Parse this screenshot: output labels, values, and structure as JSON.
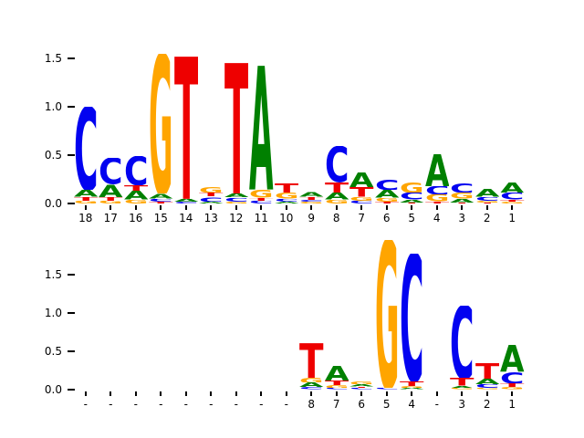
{
  "figure": {
    "background": "#ffffff"
  },
  "letter_colors": {
    "A": "#008000",
    "C": "#0202f0",
    "G": "#ffa500",
    "T": "#ee0000"
  },
  "chart_data": [
    {
      "type": "sequence-logo",
      "title": "",
      "xlabel": "",
      "ylabel": "",
      "legend": "none",
      "grid": false,
      "ylim": [
        0,
        1.65
      ],
      "ytick_labels": [
        "0.0",
        "0.5",
        "1.0",
        "1.5"
      ],
      "ytick_values": [
        0,
        0.5,
        1.0,
        1.5
      ],
      "positions": [
        {
          "label": "18",
          "stack": [
            [
              "G",
              0.03
            ],
            [
              "T",
              0.04
            ],
            [
              "A",
              0.07
            ],
            [
              "C",
              0.86
            ]
          ]
        },
        {
          "label": "17",
          "stack": [
            [
              "G",
              0.03
            ],
            [
              "T",
              0.04
            ],
            [
              "A",
              0.13
            ],
            [
              "C",
              0.27
            ]
          ]
        },
        {
          "label": "16",
          "stack": [
            [
              "G",
              0.04
            ],
            [
              "A",
              0.09
            ],
            [
              "T",
              0.06
            ],
            [
              "C",
              0.3
            ]
          ]
        },
        {
          "label": "15",
          "stack": [
            [
              "T",
              0.02
            ],
            [
              "C",
              0.03
            ],
            [
              "A",
              0.05
            ],
            [
              "G",
              1.45
            ]
          ]
        },
        {
          "label": "14",
          "stack": [
            [
              "C",
              0.02
            ],
            [
              "A",
              0.03
            ],
            [
              "T",
              1.47
            ]
          ]
        },
        {
          "label": "13",
          "stack": [
            [
              "A",
              0.02
            ],
            [
              "C",
              0.05
            ],
            [
              "T",
              0.04
            ],
            [
              "G",
              0.06
            ]
          ]
        },
        {
          "label": "12",
          "stack": [
            [
              "G",
              0.02
            ],
            [
              "C",
              0.04
            ],
            [
              "A",
              0.04
            ],
            [
              "T",
              1.35
            ]
          ]
        },
        {
          "label": "11",
          "stack": [
            [
              "C",
              0.03
            ],
            [
              "T",
              0.03
            ],
            [
              "G",
              0.08
            ],
            [
              "A",
              1.28
            ]
          ]
        },
        {
          "label": "10",
          "stack": [
            [
              "A",
              0.02
            ],
            [
              "C",
              0.03
            ],
            [
              "G",
              0.06
            ],
            [
              "T",
              0.1
            ]
          ]
        },
        {
          "label": "9",
          "stack": [
            [
              "G",
              0.02
            ],
            [
              "C",
              0.02
            ],
            [
              "T",
              0.03
            ],
            [
              "A",
              0.05
            ]
          ]
        },
        {
          "label": "8",
          "stack": [
            [
              "G",
              0.04
            ],
            [
              "A",
              0.07
            ],
            [
              "T",
              0.11
            ],
            [
              "C",
              0.37
            ]
          ]
        },
        {
          "label": "7",
          "stack": [
            [
              "C",
              0.03
            ],
            [
              "G",
              0.04
            ],
            [
              "T",
              0.1
            ],
            [
              "A",
              0.15
            ]
          ]
        },
        {
          "label": "6",
          "stack": [
            [
              "T",
              0.02
            ],
            [
              "G",
              0.04
            ],
            [
              "A",
              0.08
            ],
            [
              "C",
              0.11
            ]
          ]
        },
        {
          "label": "5",
          "stack": [
            [
              "T",
              0.01
            ],
            [
              "A",
              0.03
            ],
            [
              "C",
              0.07
            ],
            [
              "G",
              0.11
            ]
          ]
        },
        {
          "label": "4",
          "stack": [
            [
              "T",
              0.02
            ],
            [
              "G",
              0.07
            ],
            [
              "C",
              0.09
            ],
            [
              "A",
              0.33
            ]
          ]
        },
        {
          "label": "3",
          "stack": [
            [
              "T",
              0.01
            ],
            [
              "A",
              0.04
            ],
            [
              "G",
              0.06
            ],
            [
              "C",
              0.1
            ]
          ]
        },
        {
          "label": "2",
          "stack": [
            [
              "T",
              0.01
            ],
            [
              "G",
              0.02
            ],
            [
              "C",
              0.04
            ],
            [
              "A",
              0.08
            ]
          ]
        },
        {
          "label": "1",
          "stack": [
            [
              "G",
              0.02
            ],
            [
              "T",
              0.02
            ],
            [
              "C",
              0.07
            ],
            [
              "A",
              0.11
            ]
          ]
        }
      ]
    },
    {
      "type": "sequence-logo",
      "title": "",
      "xlabel": "",
      "ylabel": "",
      "legend": "none",
      "grid": false,
      "ylim": [
        0,
        2.0
      ],
      "ytick_labels": [
        "0.0",
        "0.5",
        "1.0",
        "1.5"
      ],
      "ytick_values": [
        0,
        0.5,
        1.0,
        1.5
      ],
      "positions": [
        {
          "label": "-",
          "stack": []
        },
        {
          "label": "-",
          "stack": []
        },
        {
          "label": "-",
          "stack": []
        },
        {
          "label": "-",
          "stack": []
        },
        {
          "label": "-",
          "stack": []
        },
        {
          "label": "-",
          "stack": []
        },
        {
          "label": "-",
          "stack": []
        },
        {
          "label": "-",
          "stack": []
        },
        {
          "label": "-",
          "stack": []
        },
        {
          "label": "8",
          "stack": [
            [
              "C",
              0.03
            ],
            [
              "A",
              0.06
            ],
            [
              "G",
              0.07
            ],
            [
              "T",
              0.45
            ]
          ]
        },
        {
          "label": "7",
          "stack": [
            [
              "C",
              0.02
            ],
            [
              "G",
              0.04
            ],
            [
              "T",
              0.06
            ],
            [
              "A",
              0.19
            ]
          ]
        },
        {
          "label": "6",
          "stack": [
            [
              "C",
              0.02
            ],
            [
              "T",
              0.02
            ],
            [
              "A",
              0.03
            ],
            [
              "G",
              0.04
            ]
          ]
        },
        {
          "label": "5",
          "stack": [
            [
              "C",
              0.02
            ],
            [
              "G",
              1.93
            ]
          ]
        },
        {
          "label": "4",
          "stack": [
            [
              "A",
              0.02
            ],
            [
              "G",
              0.03
            ],
            [
              "T",
              0.06
            ],
            [
              "C",
              1.66
            ]
          ]
        },
        {
          "label": "-",
          "stack": []
        },
        {
          "label": "3",
          "stack": [
            [
              "G",
              0.02
            ],
            [
              "A",
              0.03
            ],
            [
              "T",
              0.1
            ],
            [
              "C",
              0.95
            ]
          ]
        },
        {
          "label": "2",
          "stack": [
            [
              "G",
              0.02
            ],
            [
              "C",
              0.05
            ],
            [
              "A",
              0.07
            ],
            [
              "T",
              0.2
            ]
          ]
        },
        {
          "label": "1",
          "stack": [
            [
              "G",
              0.03
            ],
            [
              "T",
              0.05
            ],
            [
              "C",
              0.15
            ],
            [
              "A",
              0.35
            ]
          ]
        }
      ]
    }
  ]
}
